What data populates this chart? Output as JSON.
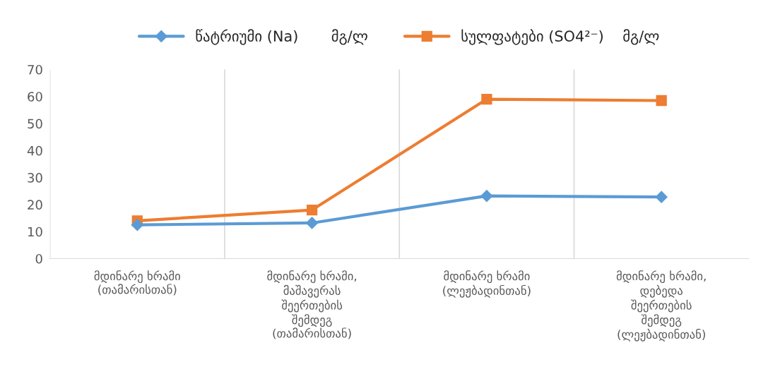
{
  "chart_data": {
    "type": "line",
    "categories": [
      "მდინარე ხრამი\n(თამარისთან)",
      "მდინარე ხრამი,\nმაშავერას\nშეერთების\nშემდეგ\n(თამარისთან)",
      "მდინარე ხრამი\n(ლეჟბადინთან)",
      "მდინარე ხრამი,\nდებედა\nშეერთების\nშემდეგ\n(ლეჟბადინთან)"
    ],
    "series": [
      {
        "name": "წატრიუმი (Na)       მგ/ლ",
        "color": "#5b9bd5",
        "marker": "diamond",
        "values": [
          12.5,
          13.2,
          23.2,
          22.8
        ]
      },
      {
        "name": "სულფატები (SO4²⁻)    მგ/ლ",
        "color": "#ed7d31",
        "marker": "square",
        "values": [
          14,
          18,
          59,
          58.5
        ]
      }
    ],
    "ylim": [
      0,
      70
    ],
    "yticks": [
      0,
      10,
      20,
      30,
      40,
      50,
      60,
      70
    ],
    "grid": "x",
    "legend": "top",
    "line_style": "solid"
  }
}
